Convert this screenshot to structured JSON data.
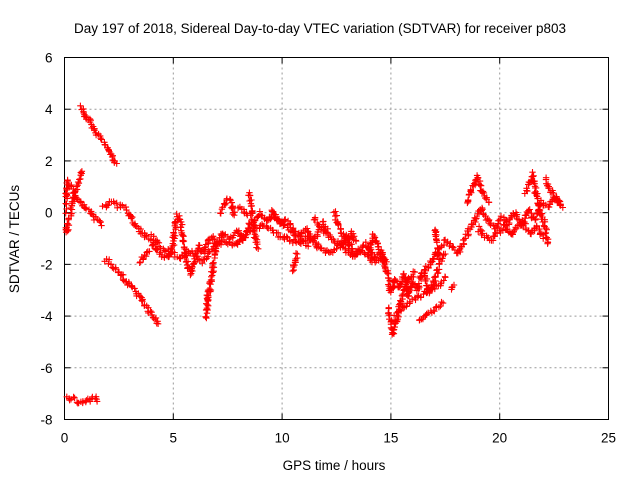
{
  "chart_data": {
    "type": "scatter",
    "title": "Day 197 of 2018, Sidereal Day-to-day VTEC variation (SDTVAR) for receiver p803",
    "xlabel": "GPS time / hours",
    "ylabel": "SDTVAR / TECUs",
    "xlim": [
      0,
      25
    ],
    "ylim": [
      -8,
      6
    ],
    "x_ticks": [
      0,
      5,
      10,
      15,
      20,
      25
    ],
    "y_ticks": [
      -8,
      -6,
      -4,
      -2,
      0,
      2,
      4,
      6
    ],
    "grid": true,
    "marker": "+",
    "color": "#ff0000",
    "series": [
      {
        "name": "SDTVAR",
        "segments": [
          [
            [
              0.0,
              -7.05
            ],
            [
              0.2,
              -7.15
            ],
            [
              0.4,
              -7.2
            ],
            [
              0.6,
              -7.3
            ],
            [
              0.8,
              -7.35
            ],
            [
              1.0,
              -7.3
            ],
            [
              1.2,
              -7.25
            ],
            [
              1.4,
              -7.15
            ],
            [
              1.5,
              -7.3
            ]
          ],
          [
            [
              0.75,
              4.1
            ],
            [
              0.9,
              3.9
            ],
            [
              1.1,
              3.6
            ],
            [
              1.3,
              3.3
            ],
            [
              1.5,
              3.0
            ],
            [
              1.7,
              2.8
            ],
            [
              1.9,
              2.6
            ],
            [
              2.1,
              2.3
            ],
            [
              2.3,
              2.0
            ],
            [
              2.4,
              1.9
            ]
          ],
          [
            [
              0.0,
              -0.1
            ],
            [
              0.1,
              0.6
            ],
            [
              0.15,
              1.2
            ],
            [
              0.3,
              1.0
            ],
            [
              0.5,
              0.6
            ],
            [
              0.7,
              0.4
            ],
            [
              0.9,
              0.2
            ],
            [
              1.1,
              0.1
            ],
            [
              1.3,
              -0.1
            ],
            [
              1.5,
              -0.3
            ],
            [
              1.7,
              -0.5
            ]
          ],
          [
            [
              0.0,
              -0.5
            ],
            [
              0.1,
              -0.8
            ],
            [
              0.2,
              -0.3
            ],
            [
              0.35,
              0.2
            ],
            [
              0.5,
              0.9
            ],
            [
              0.7,
              1.3
            ],
            [
              0.8,
              1.6
            ]
          ],
          [
            [
              1.9,
              -1.8
            ],
            [
              2.2,
              -2.1
            ],
            [
              2.5,
              -2.3
            ],
            [
              2.8,
              -2.6
            ],
            [
              3.1,
              -2.9
            ],
            [
              3.4,
              -3.2
            ],
            [
              3.7,
              -3.6
            ],
            [
              4.0,
              -3.9
            ],
            [
              4.3,
              -4.3
            ]
          ],
          [
            [
              1.8,
              0.2
            ],
            [
              2.1,
              0.4
            ],
            [
              2.4,
              0.3
            ],
            [
              2.7,
              0.2
            ],
            [
              2.9,
              0.1
            ],
            [
              3.1,
              -0.3
            ],
            [
              3.4,
              -0.6
            ],
            [
              3.7,
              -0.9
            ],
            [
              4.0,
              -1.1
            ],
            [
              4.3,
              -1.5
            ],
            [
              4.6,
              -1.8
            ],
            [
              4.8,
              -1.7
            ],
            [
              5.0,
              -1.2
            ],
            [
              5.1,
              -0.4
            ],
            [
              5.2,
              -0.1
            ],
            [
              5.4,
              -0.6
            ],
            [
              5.5,
              -1.2
            ],
            [
              5.6,
              -1.9
            ],
            [
              5.8,
              -2.4
            ],
            [
              6.0,
              -1.7
            ],
            [
              6.2,
              -1.3
            ],
            [
              6.4,
              -1.6
            ],
            [
              6.6,
              -1.1
            ],
            [
              6.8,
              -0.9
            ],
            [
              7.0,
              -1.2
            ],
            [
              7.3,
              -0.8
            ],
            [
              7.6,
              -1.0
            ],
            [
              8.0,
              -0.7
            ],
            [
              8.2,
              -1.1
            ],
            [
              8.5,
              -0.5
            ],
            [
              8.8,
              -0.2
            ],
            [
              9.0,
              0.0
            ],
            [
              9.3,
              -0.3
            ],
            [
              9.6,
              -0.1
            ],
            [
              9.9,
              -0.4
            ],
            [
              10.2,
              -0.3
            ],
            [
              10.5,
              -0.7
            ],
            [
              10.8,
              -0.9
            ],
            [
              11.1,
              -0.6
            ],
            [
              11.4,
              -1.1
            ],
            [
              11.8,
              -0.6
            ],
            [
              12.1,
              -0.9
            ],
            [
              12.4,
              -1.1
            ],
            [
              12.7,
              -1.3
            ],
            [
              13.0,
              -0.9
            ],
            [
              13.3,
              -1.6
            ],
            [
              13.6,
              -1.4
            ],
            [
              13.9,
              -1.2
            ],
            [
              14.2,
              -1.8
            ],
            [
              14.5,
              -1.6
            ],
            [
              14.8,
              -2.2
            ],
            [
              15.0,
              -3.1
            ],
            [
              15.2,
              -2.6
            ],
            [
              15.4,
              -2.9
            ],
            [
              15.6,
              -2.4
            ],
            [
              15.8,
              -3.2
            ],
            [
              16.0,
              -2.7
            ],
            [
              16.2,
              -3.0
            ],
            [
              16.5,
              -2.3
            ],
            [
              16.8,
              -2.0
            ],
            [
              17.0,
              -1.7
            ],
            [
              17.2,
              -1.4
            ],
            [
              17.5,
              -1.1
            ],
            [
              17.8,
              -1.3
            ],
            [
              18.1,
              -1.6
            ],
            [
              18.3,
              -1.2
            ],
            [
              18.6,
              -0.7
            ],
            [
              18.9,
              -0.2
            ],
            [
              19.2,
              0.2
            ],
            [
              19.5,
              -0.4
            ],
            [
              19.8,
              -0.6
            ],
            [
              20.1,
              -0.2
            ],
            [
              20.4,
              -0.4
            ],
            [
              20.7,
              0.0
            ],
            [
              21.0,
              -0.5
            ],
            [
              21.3,
              0.1
            ],
            [
              21.6,
              -0.3
            ],
            [
              21.9,
              0.4
            ],
            [
              22.2,
              0.2
            ],
            [
              22.5,
              0.6
            ],
            [
              22.8,
              0.3
            ]
          ],
          [
            [
              4.0,
              -0.9
            ],
            [
              4.4,
              -1.3
            ],
            [
              4.8,
              -1.5
            ],
            [
              5.3,
              -1.7
            ],
            [
              5.8,
              -1.5
            ],
            [
              6.3,
              -1.9
            ],
            [
              6.8,
              -1.4
            ],
            [
              7.3,
              -1.1
            ],
            [
              7.8,
              -1.3
            ],
            [
              8.3,
              -0.8
            ],
            [
              8.7,
              -0.6
            ],
            [
              9.2,
              -0.5
            ],
            [
              9.7,
              -0.8
            ],
            [
              10.2,
              -1.0
            ],
            [
              10.7,
              -1.2
            ],
            [
              11.2,
              -0.9
            ],
            [
              11.7,
              -1.4
            ],
            [
              12.2,
              -1.6
            ],
            [
              12.7,
              -1.2
            ],
            [
              13.2,
              -1.7
            ],
            [
              13.7,
              -1.5
            ],
            [
              14.2,
              -1.9
            ],
            [
              14.6,
              -1.7
            ]
          ],
          [
            [
              3.5,
              -1.9
            ],
            [
              3.7,
              -1.6
            ],
            [
              3.9,
              -1.5
            ]
          ],
          [
            [
              6.6,
              -3.4
            ],
            [
              6.8,
              -2.3
            ],
            [
              6.9,
              -1.6
            ],
            [
              7.0,
              -1.2
            ]
          ],
          [
            [
              6.5,
              -4.1
            ],
            [
              6.55,
              -3.6
            ],
            [
              6.6,
              -3.0
            ]
          ],
          [
            [
              10.5,
              -2.2
            ],
            [
              10.6,
              -2.0
            ],
            [
              10.7,
              -1.6
            ]
          ],
          [
            [
              8.5,
              0.8
            ],
            [
              8.55,
              0.4
            ],
            [
              8.6,
              0.0
            ],
            [
              8.7,
              -0.6
            ],
            [
              8.8,
              -1.1
            ],
            [
              8.9,
              -1.4
            ]
          ],
          [
            [
              7.2,
              0.0
            ],
            [
              7.5,
              0.5
            ],
            [
              7.7,
              0.3
            ],
            [
              7.8,
              -0.1
            ]
          ],
          [
            [
              8.0,
              0.2
            ],
            [
              8.2,
              0.1
            ],
            [
              8.4,
              -0.1
            ]
          ],
          [
            [
              15.2,
              -4.0
            ],
            [
              15.6,
              -3.6
            ],
            [
              16.0,
              -3.4
            ],
            [
              16.4,
              -3.2
            ],
            [
              16.8,
              -3.0
            ],
            [
              17.2,
              -2.8
            ],
            [
              17.5,
              -2.5
            ]
          ],
          [
            [
              16.3,
              -4.2
            ],
            [
              16.6,
              -3.9
            ],
            [
              16.9,
              -3.8
            ],
            [
              17.2,
              -3.6
            ],
            [
              17.4,
              -3.5
            ]
          ],
          [
            [
              14.9,
              -3.7
            ],
            [
              15.0,
              -4.2
            ],
            [
              15.1,
              -4.7
            ],
            [
              15.3,
              -4.0
            ],
            [
              15.5,
              -3.3
            ],
            [
              15.7,
              -2.8
            ],
            [
              15.9,
              -2.5
            ],
            [
              16.1,
              -2.3
            ]
          ],
          [
            [
              17.0,
              -0.6
            ],
            [
              17.1,
              -1.1
            ],
            [
              17.2,
              -1.8
            ]
          ],
          [
            [
              17.8,
              -3.0
            ],
            [
              17.9,
              -2.8
            ]
          ],
          [
            [
              18.5,
              0.4
            ],
            [
              18.8,
              1.1
            ],
            [
              19.0,
              1.4
            ],
            [
              19.2,
              0.8
            ],
            [
              19.5,
              0.4
            ]
          ],
          [
            [
              21.2,
              0.8
            ],
            [
              21.4,
              1.2
            ],
            [
              21.5,
              1.5
            ],
            [
              21.7,
              0.6
            ],
            [
              21.9,
              0.0
            ],
            [
              22.1,
              -0.6
            ],
            [
              22.2,
              -1.2
            ]
          ],
          [
            [
              22.1,
              1.3
            ],
            [
              22.3,
              0.9
            ],
            [
              22.5,
              0.7
            ],
            [
              22.7,
              0.4
            ],
            [
              22.9,
              0.2
            ]
          ],
          [
            [
              19.0,
              -0.6
            ],
            [
              19.3,
              -0.9
            ],
            [
              19.6,
              -1.1
            ],
            [
              19.9,
              -0.8
            ],
            [
              20.2,
              -0.5
            ],
            [
              20.5,
              -0.9
            ],
            [
              20.8,
              -0.6
            ],
            [
              21.1,
              -0.4
            ],
            [
              21.4,
              -0.8
            ],
            [
              21.7,
              -0.5
            ],
            [
              22.0,
              -1.0
            ]
          ],
          [
            [
              16.5,
              -2.4
            ],
            [
              16.8,
              -3.1
            ],
            [
              17.0,
              -2.6
            ],
            [
              17.3,
              -1.9
            ],
            [
              17.5,
              -1.6
            ]
          ],
          [
            [
              12.4,
              0.0
            ],
            [
              12.6,
              -0.5
            ],
            [
              12.8,
              -0.9
            ],
            [
              13.0,
              -1.2
            ],
            [
              13.2,
              -0.8
            ],
            [
              13.4,
              -1.1
            ]
          ],
          [
            [
              14.0,
              -1.5
            ],
            [
              14.2,
              -0.9
            ],
            [
              14.4,
              -1.2
            ],
            [
              14.6,
              -1.6
            ],
            [
              14.8,
              -1.9
            ]
          ],
          [
            [
              11.5,
              -0.2
            ],
            [
              11.7,
              -0.5
            ],
            [
              11.9,
              -0.4
            ],
            [
              12.1,
              -0.8
            ]
          ],
          [
            [
              9.5,
              0.1
            ],
            [
              9.8,
              -0.3
            ],
            [
              10.0,
              -0.4
            ],
            [
              10.3,
              -0.6
            ],
            [
              10.6,
              -0.8
            ],
            [
              10.9,
              -1.0
            ],
            [
              11.2,
              -1.3
            ]
          ]
        ]
      }
    ]
  }
}
